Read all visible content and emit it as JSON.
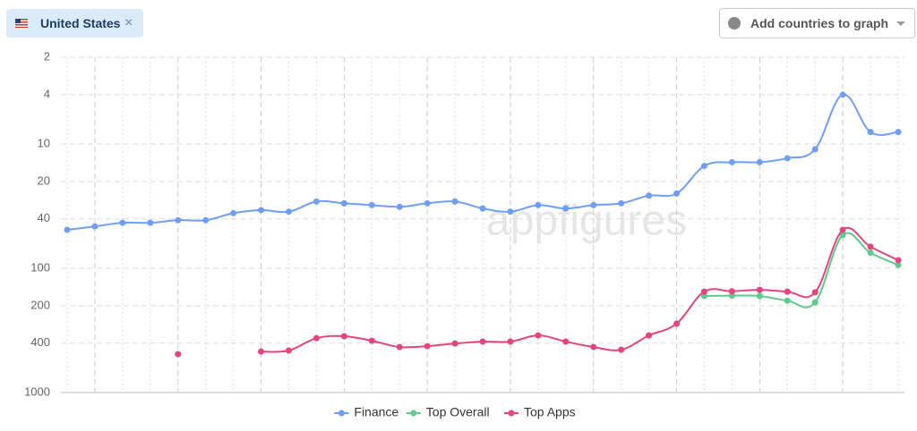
{
  "header": {
    "country": "United States",
    "remove": "×",
    "add_button": "Add countries to graph"
  },
  "chart_data": {
    "type": "line",
    "watermark": "appfigures",
    "categories": [
      null,
      null,
      null,
      null,
      null,
      null,
      null,
      null,
      null,
      null,
      null,
      null,
      null,
      null,
      null,
      null,
      null,
      null,
      null,
      null,
      null,
      null,
      null,
      null,
      null,
      null,
      null,
      null,
      null,
      null,
      null
    ],
    "log_scale": true,
    "ylim": [
      1000,
      2
    ],
    "yticks": [
      2,
      4,
      10,
      20,
      40,
      100,
      200,
      400,
      1000
    ],
    "grid": true,
    "legend": "bottom",
    "series": [
      {
        "name": "Finance",
        "color": "#6f9ef7",
        "values": [
          49,
          46,
          43,
          43,
          41,
          41,
          36,
          34,
          35,
          29,
          30,
          31,
          32,
          30,
          29,
          33,
          35,
          31,
          33,
          31,
          30,
          26,
          25,
          15,
          14,
          14,
          13,
          11,
          4,
          8,
          8
        ]
      },
      {
        "name": "Top Overall",
        "color": "#5ecb8a",
        "values": [
          null,
          null,
          null,
          null,
          null,
          null,
          null,
          null,
          null,
          null,
          null,
          null,
          null,
          null,
          null,
          null,
          null,
          null,
          null,
          null,
          null,
          null,
          null,
          167,
          166,
          167,
          182,
          188,
          54,
          75,
          94
        ]
      },
      {
        "name": "Top Apps",
        "color": "#e4457f",
        "values": [
          null,
          null,
          null,
          null,
          491,
          null,
          null,
          468,
          459,
          365,
          352,
          383,
          430,
          423,
          403,
          389,
          389,
          347,
          389,
          430,
          452,
          347,
          279,
          154,
          153,
          149,
          154,
          156,
          49,
          67,
          86
        ]
      }
    ]
  }
}
